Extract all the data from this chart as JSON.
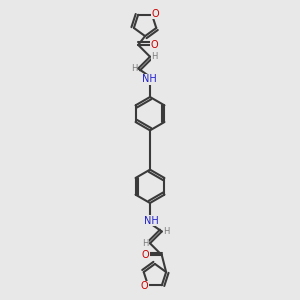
{
  "bg_color": "#e8e8e8",
  "bond_color": "#3a3a3a",
  "N_color": "#2020cc",
  "O_color": "#cc0000",
  "H_color": "#7a7a7a",
  "lw": 1.5,
  "figsize": [
    3.0,
    3.0
  ],
  "dpi": 100,
  "xlim": [
    -3.5,
    3.5
  ],
  "ylim": [
    -7.5,
    7.5
  ]
}
